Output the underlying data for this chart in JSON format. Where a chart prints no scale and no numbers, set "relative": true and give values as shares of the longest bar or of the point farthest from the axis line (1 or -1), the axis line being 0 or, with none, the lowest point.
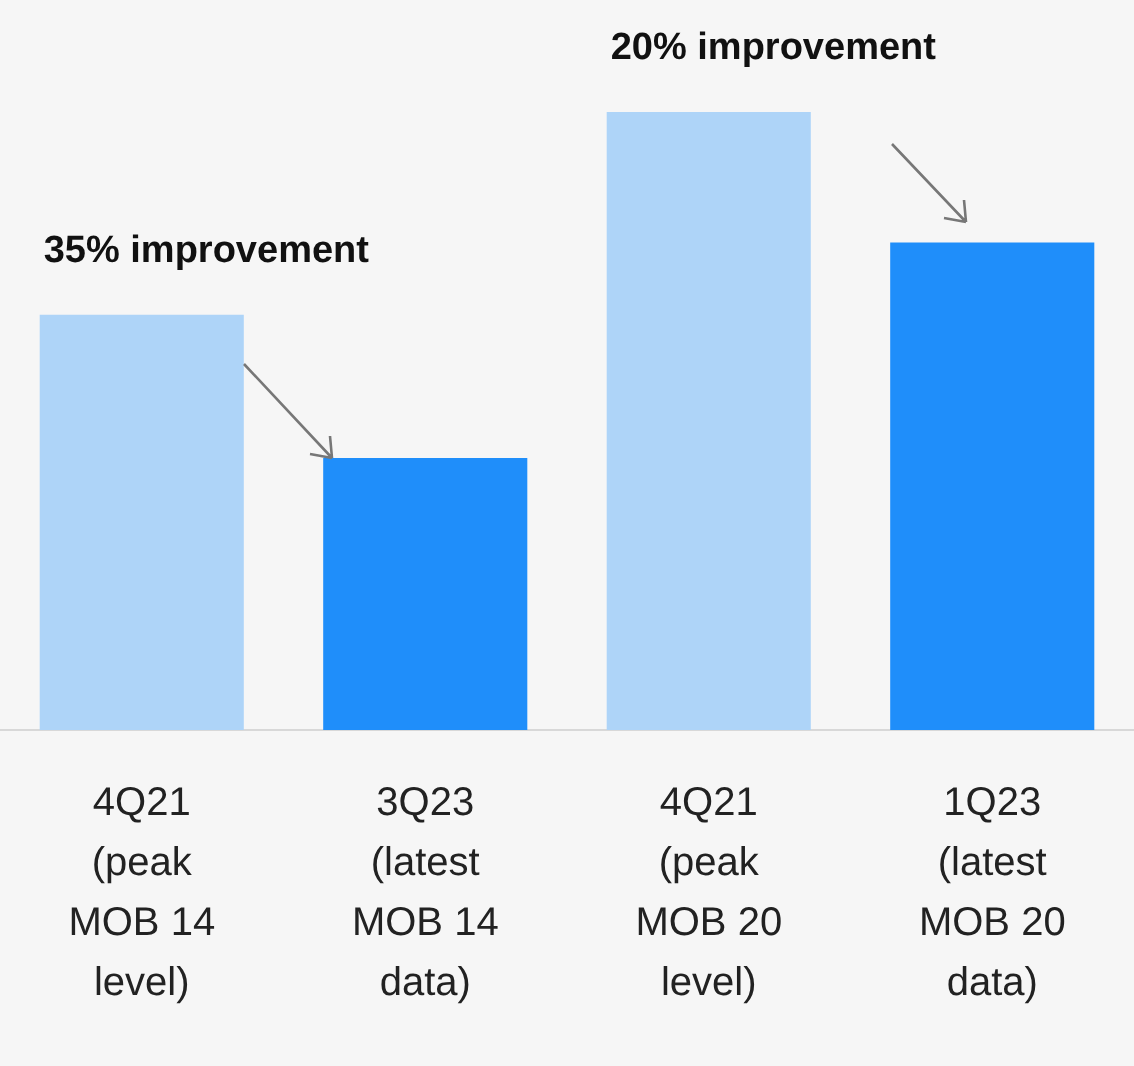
{
  "chart_data": {
    "type": "bar",
    "relative": true,
    "categories": [
      "4Q21 (peak MOB 14 level)",
      "3Q23 (latest MOB 14 data)",
      "4Q21 (peak MOB 20 level)",
      "1Q23 (latest MOB 20 data)"
    ],
    "values": [
      0.672,
      0.44,
      1,
      0.789
    ],
    "colors": [
      "#aed4f8",
      "#1f8efa",
      "#aed4f8",
      "#1f8efa"
    ],
    "annotations": [
      "35% improvement",
      "20% improvement"
    ],
    "grid": false,
    "legend": false
  }
}
